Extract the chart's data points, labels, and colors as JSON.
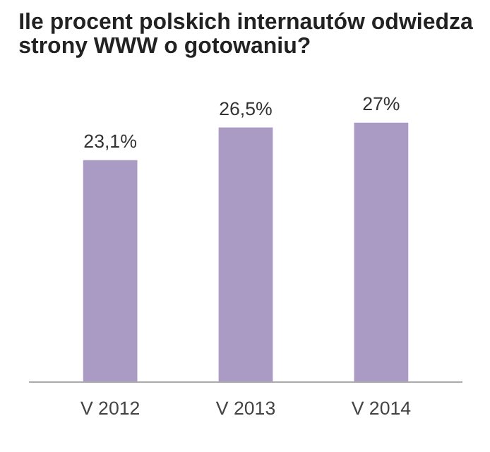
{
  "chart_data": {
    "type": "bar",
    "title": "Ile procent polskich internautów odwiedza\nstrony WWW o gotowaniu?",
    "categories": [
      "V 2012",
      "V 2013",
      "V 2014"
    ],
    "values": [
      23.1,
      26.5,
      27
    ],
    "value_labels": [
      "23,1%",
      "26,5%",
      "27%"
    ],
    "color": "#a99bc4",
    "grid": false
  }
}
